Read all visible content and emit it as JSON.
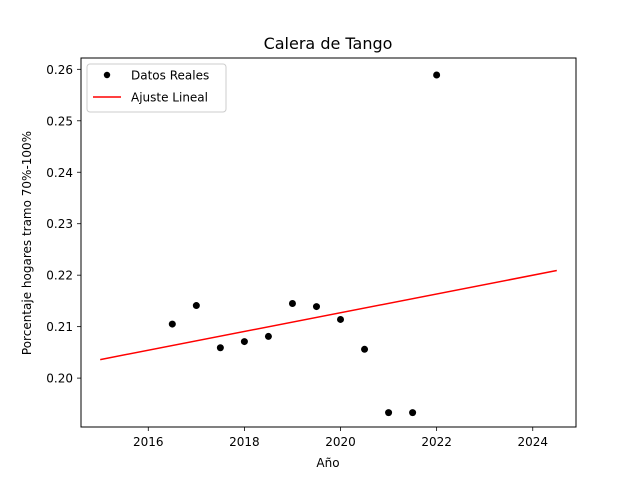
{
  "chart_data": {
    "type": "scatter",
    "title": "Calera de Tango",
    "xlabel": "Año",
    "ylabel": "Porcentaje hogares tramo 70%-100%",
    "xlim": [
      2014.6,
      2024.9
    ],
    "ylim": [
      0.1905,
      0.2622
    ],
    "x_ticks": [
      2016,
      2018,
      2020,
      2022,
      2024
    ],
    "y_ticks": [
      0.2,
      0.21,
      0.22,
      0.23,
      0.24,
      0.25,
      0.26
    ],
    "x_tick_labels": [
      "2016",
      "2018",
      "2020",
      "2022",
      "2024"
    ],
    "y_tick_labels": [
      "0.20",
      "0.21",
      "0.22",
      "0.23",
      "0.24",
      "0.25",
      "0.26"
    ],
    "grid": false,
    "legend_position": "top-left",
    "series": [
      {
        "name": "Datos Reales",
        "kind": "scatter",
        "color": "#000000",
        "points": [
          {
            "x": 2016.5,
            "y": 0.2105
          },
          {
            "x": 2017.0,
            "y": 0.2141
          },
          {
            "x": 2017.5,
            "y": 0.2059
          },
          {
            "x": 2018.0,
            "y": 0.2071
          },
          {
            "x": 2018.5,
            "y": 0.2081
          },
          {
            "x": 2019.0,
            "y": 0.2145
          },
          {
            "x": 2019.5,
            "y": 0.2139
          },
          {
            "x": 2020.0,
            "y": 0.2114
          },
          {
            "x": 2020.5,
            "y": 0.2056
          },
          {
            "x": 2021.0,
            "y": 0.1933
          },
          {
            "x": 2021.5,
            "y": 0.1933
          },
          {
            "x": 2022.0,
            "y": 0.2589
          }
        ]
      },
      {
        "name": "Ajuste Lineal",
        "kind": "line",
        "color": "#ff0000",
        "points": [
          {
            "x": 2015.0,
            "y": 0.2036
          },
          {
            "x": 2024.5,
            "y": 0.2209
          }
        ]
      }
    ]
  }
}
